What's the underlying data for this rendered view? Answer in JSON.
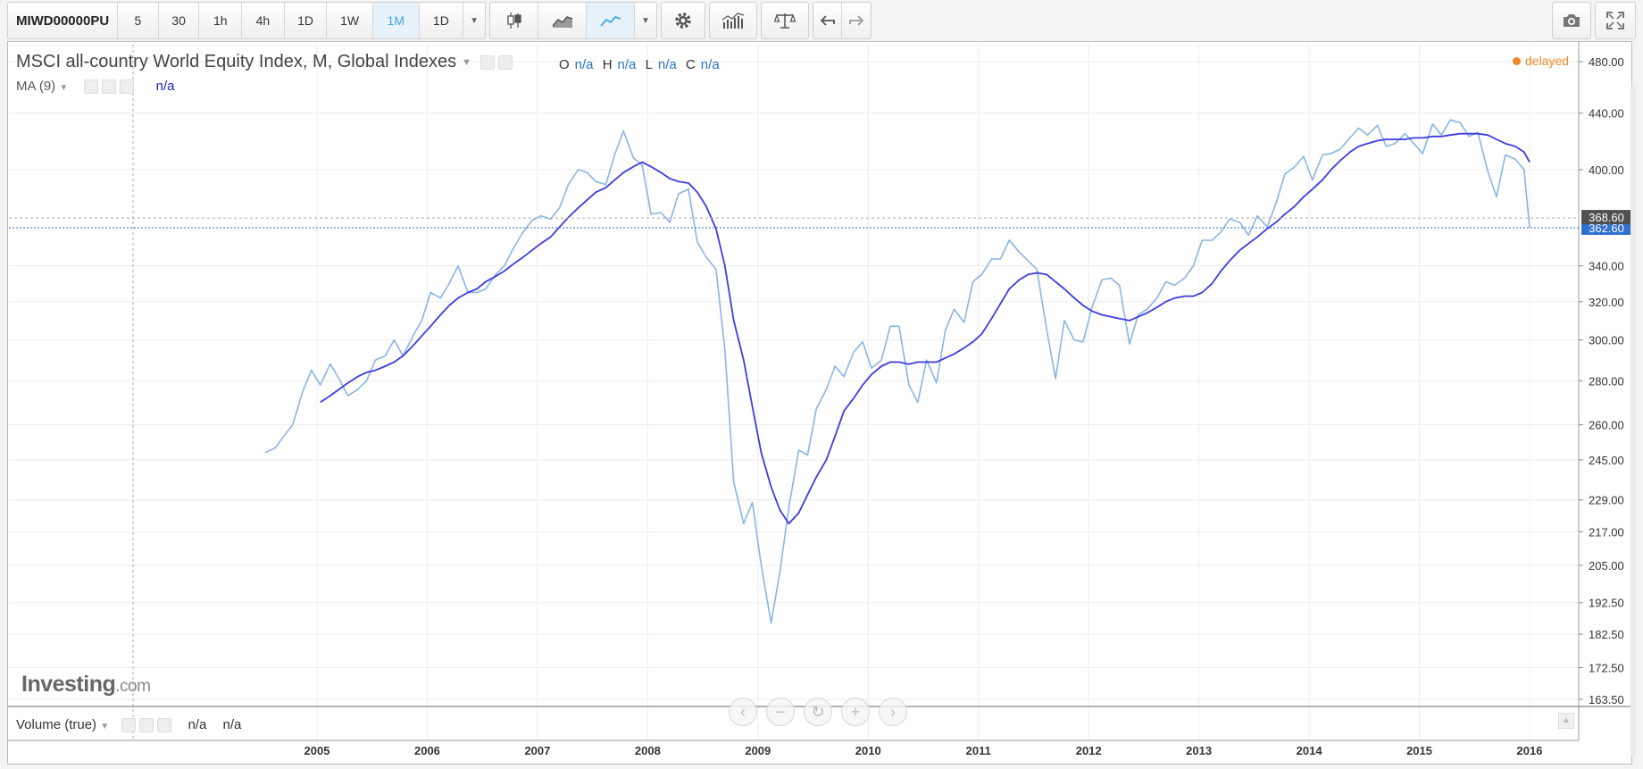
{
  "toolbar": {
    "symbol": "MIWD00000PU",
    "intervals": [
      "5",
      "30",
      "1h",
      "4h",
      "1D",
      "1W",
      "1M"
    ],
    "active_interval": "1M",
    "period": "1D"
  },
  "legend": {
    "title": "MSCI all-country World Equity Index, M, Global Indexes",
    "ohlc": [
      {
        "key": "O",
        "value": "n/a"
      },
      {
        "key": "H",
        "value": "n/a"
      },
      {
        "key": "L",
        "value": "n/a"
      },
      {
        "key": "C",
        "value": "n/a"
      }
    ],
    "ma_label": "MA (9)",
    "ma_value": "n/a",
    "delayed": "delayed"
  },
  "volume": {
    "label": "Volume (true)",
    "v1": "n/a",
    "v2": "n/a"
  },
  "watermark": {
    "brand": "Investing",
    "suffix": ".com"
  },
  "colors": {
    "price_line": "#8ab4e6",
    "ma_line": "#3c3ce0",
    "last_price_badge": "#2f6fd0",
    "crosshair_badge": "#505050",
    "delayed": "#f0862a"
  },
  "chart_data": {
    "type": "line",
    "x_unit": "year",
    "y_scale": "log",
    "ylim": [
      160,
      490
    ],
    "y_ticks": [
      163.5,
      172.5,
      182.5,
      192.5,
      205,
      217,
      229,
      245,
      260,
      280,
      300,
      320,
      340,
      400,
      440,
      480
    ],
    "y_tick_labels": [
      "163.50",
      "172.50",
      "182.50",
      "192.50",
      "205.00",
      "217.00",
      "229.00",
      "245.00",
      "260.00",
      "280.00",
      "300.00",
      "320.00",
      "340.00",
      "400.00",
      "440.00",
      "480.00"
    ],
    "x_ticks": [
      2005,
      2006,
      2007,
      2008,
      2009,
      2010,
      2011,
      2012,
      2013,
      2014,
      2015,
      2016
    ],
    "x_tick_labels": [
      "2005",
      "2006",
      "2007",
      "2008",
      "2009",
      "2010",
      "2011",
      "2012",
      "2013",
      "2014",
      "2015",
      "2016"
    ],
    "price_labels": {
      "crosshair": "368.60",
      "last": "362.60"
    },
    "crosshair_value": 368.6,
    "last_value": 362.6,
    "series": [
      {
        "name": "MSCI all-country World Equity Index",
        "x": [
          2004.53,
          2004.62,
          2004.7,
          2004.78,
          2004.87,
          2004.95,
          2005.03,
          2005.12,
          2005.2,
          2005.28,
          2005.37,
          2005.45,
          2005.53,
          2005.62,
          2005.7,
          2005.78,
          2005.87,
          2005.95,
          2006.03,
          2006.12,
          2006.2,
          2006.28,
          2006.37,
          2006.45,
          2006.53,
          2006.62,
          2006.7,
          2006.78,
          2006.87,
          2006.95,
          2007.03,
          2007.12,
          2007.2,
          2007.28,
          2007.37,
          2007.45,
          2007.53,
          2007.62,
          2007.7,
          2007.78,
          2007.87,
          2007.95,
          2008.03,
          2008.12,
          2008.2,
          2008.28,
          2008.37,
          2008.45,
          2008.53,
          2008.62,
          2008.7,
          2008.78,
          2008.87,
          2008.95,
          2009.03,
          2009.12,
          2009.2,
          2009.28,
          2009.37,
          2009.45,
          2009.53,
          2009.62,
          2009.7,
          2009.78,
          2009.87,
          2009.95,
          2010.03,
          2010.12,
          2010.2,
          2010.28,
          2010.37,
          2010.45,
          2010.53,
          2010.62,
          2010.7,
          2010.78,
          2010.87,
          2010.95,
          2011.03,
          2011.12,
          2011.2,
          2011.28,
          2011.37,
          2011.45,
          2011.53,
          2011.62,
          2011.7,
          2011.78,
          2011.87,
          2011.95,
          2012.03,
          2012.12,
          2012.2,
          2012.28,
          2012.37,
          2012.45,
          2012.53,
          2012.62,
          2012.7,
          2012.78,
          2012.87,
          2012.95,
          2013.03,
          2013.12,
          2013.2,
          2013.28,
          2013.37,
          2013.45,
          2013.53,
          2013.62,
          2013.7,
          2013.78,
          2013.87,
          2013.95,
          2014.03,
          2014.12,
          2014.2,
          2014.28,
          2014.37,
          2014.45,
          2014.53,
          2014.62,
          2014.7,
          2014.78,
          2014.87,
          2014.95,
          2015.03,
          2015.12,
          2015.2,
          2015.28,
          2015.37,
          2015.45,
          2015.53,
          2015.62,
          2015.7,
          2015.78,
          2015.87,
          2015.95,
          2016.0
        ],
        "y": [
          248,
          250,
          255,
          260,
          275,
          285,
          278,
          288,
          281,
          273,
          276,
          280,
          290,
          292,
          300,
          292,
          302,
          310,
          325,
          322,
          330,
          340,
          325,
          325,
          327,
          335,
          340,
          350,
          360,
          367,
          370,
          368,
          375,
          390,
          400,
          398,
          392,
          390,
          410,
          427,
          408,
          403,
          371,
          372,
          366,
          384,
          387,
          354,
          345,
          338,
          295,
          236,
          220,
          228,
          205,
          186,
          203,
          226,
          249,
          247,
          267,
          276,
          287,
          282,
          294,
          299,
          286,
          290,
          307,
          307,
          278,
          270,
          290,
          279,
          305,
          316,
          309,
          331,
          335,
          344,
          344,
          355,
          348,
          343,
          338,
          305,
          281,
          310,
          300,
          299,
          317,
          332,
          333,
          329,
          298,
          313,
          316,
          322,
          331,
          329,
          333,
          340,
          355,
          355,
          360,
          368,
          366,
          358,
          370,
          363,
          378,
          397,
          402,
          409,
          393,
          410,
          411,
          414,
          422,
          429,
          424,
          431,
          416,
          418,
          425,
          418,
          411,
          432,
          424,
          435,
          433,
          423,
          426,
          399,
          382,
          410,
          407,
          400,
          362.6
        ]
      },
      {
        "name": "MA (9)",
        "x": [
          2005.03,
          2005.12,
          2005.2,
          2005.28,
          2005.37,
          2005.45,
          2005.53,
          2005.62,
          2005.7,
          2005.78,
          2005.87,
          2005.95,
          2006.03,
          2006.12,
          2006.2,
          2006.28,
          2006.37,
          2006.45,
          2006.53,
          2006.62,
          2006.7,
          2006.78,
          2006.87,
          2006.95,
          2007.03,
          2007.12,
          2007.2,
          2007.28,
          2007.37,
          2007.45,
          2007.53,
          2007.62,
          2007.7,
          2007.78,
          2007.87,
          2007.95,
          2008.03,
          2008.12,
          2008.2,
          2008.28,
          2008.37,
          2008.45,
          2008.53,
          2008.62,
          2008.7,
          2008.78,
          2008.87,
          2008.95,
          2009.03,
          2009.12,
          2009.2,
          2009.28,
          2009.37,
          2009.45,
          2009.53,
          2009.62,
          2009.7,
          2009.78,
          2009.87,
          2009.95,
          2010.03,
          2010.12,
          2010.2,
          2010.28,
          2010.37,
          2010.45,
          2010.53,
          2010.62,
          2010.7,
          2010.78,
          2010.87,
          2010.95,
          2011.03,
          2011.12,
          2011.2,
          2011.28,
          2011.37,
          2011.45,
          2011.53,
          2011.62,
          2011.7,
          2011.78,
          2011.87,
          2011.95,
          2012.03,
          2012.12,
          2012.2,
          2012.28,
          2012.37,
          2012.45,
          2012.53,
          2012.62,
          2012.7,
          2012.78,
          2012.87,
          2012.95,
          2013.03,
          2013.12,
          2013.2,
          2013.28,
          2013.37,
          2013.45,
          2013.53,
          2013.62,
          2013.7,
          2013.78,
          2013.87,
          2013.95,
          2014.03,
          2014.12,
          2014.2,
          2014.28,
          2014.37,
          2014.45,
          2014.53,
          2014.62,
          2014.7,
          2014.78,
          2014.87,
          2014.95,
          2015.03,
          2015.12,
          2015.2,
          2015.28,
          2015.37,
          2015.45,
          2015.53,
          2015.62,
          2015.7,
          2015.78,
          2015.87,
          2015.95,
          2016.0
        ],
        "y": [
          270,
          273,
          276,
          279,
          282,
          284,
          285,
          287,
          289,
          292,
          297,
          302,
          307,
          313,
          318,
          322,
          325,
          327,
          331,
          334,
          337,
          341,
          345,
          349,
          353,
          357,
          363,
          369,
          375,
          380,
          385,
          388,
          393,
          398,
          402,
          405,
          402,
          398,
          394,
          392,
          391,
          385,
          376,
          362,
          340,
          310,
          290,
          268,
          248,
          234,
          225,
          220,
          224,
          231,
          238,
          245,
          255,
          266,
          272,
          278,
          283,
          287,
          289,
          289,
          288,
          289,
          289,
          289,
          291,
          293,
          296,
          299,
          303,
          311,
          319,
          327,
          332,
          335,
          336,
          335,
          331,
          327,
          322,
          318,
          315,
          313,
          312,
          311,
          310,
          312,
          314,
          317,
          320,
          322,
          323,
          323,
          325,
          330,
          337,
          343,
          349,
          353,
          357,
          362,
          366,
          371,
          376,
          382,
          387,
          393,
          400,
          406,
          412,
          416,
          418,
          420,
          421,
          421,
          421,
          422,
          422,
          423,
          423,
          424,
          425,
          425,
          425,
          424,
          421,
          418,
          416,
          412,
          405
        ]
      }
    ]
  }
}
